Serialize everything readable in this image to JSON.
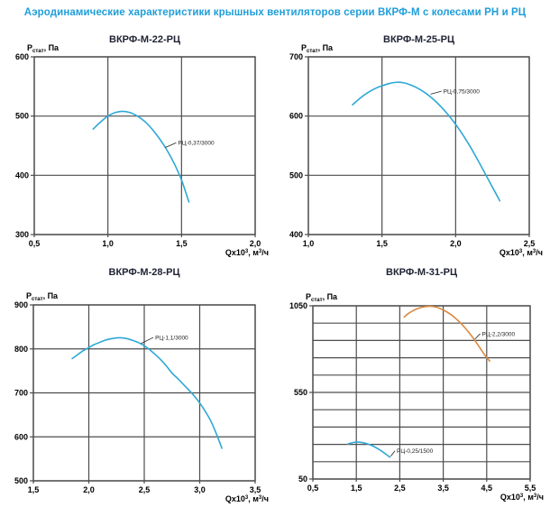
{
  "page": {
    "header": "Аэродинамические характеристики крышных вентиляторов серии ВКРФ-М с колесами РН и РЦ",
    "colors": {
      "header": "#1f9ed9",
      "chart_title": "#1f2233",
      "grid": "#4d4d4d",
      "axis_text": "#000000",
      "curve_label_text": "#222222",
      "cyan": "#2ea8d5",
      "orange": "#d98a42",
      "background": "#ffffff"
    }
  },
  "chart_data": [
    {
      "type": "line",
      "title": "ВКРФ-М-22-РЦ",
      "ylabel": {
        "base": "Р",
        "sub": "стат",
        "rest": ", Па"
      },
      "xlabel": {
        "base": "Qx10",
        "sup": "3",
        "mid": ", м",
        "sup2": "3",
        "rest": "/ч"
      },
      "xlim": [
        0.5,
        2.0
      ],
      "ylim": [
        300,
        600
      ],
      "xticks": [
        {
          "v": 0.5,
          "label": "0,5"
        },
        {
          "v": 1.0,
          "label": "1,0"
        },
        {
          "v": 1.5,
          "label": "1,5"
        },
        {
          "v": 2.0,
          "label": "2,0"
        }
      ],
      "yticks": [
        {
          "v": 300,
          "label": "300"
        },
        {
          "v": 400,
          "label": "400"
        },
        {
          "v": 500,
          "label": "500"
        },
        {
          "v": 600,
          "label": "600"
        }
      ],
      "xgrid": [
        0.5,
        1.0,
        1.5,
        2.0
      ],
      "ygrid": [
        300,
        400,
        500,
        600
      ],
      "series": [
        {
          "name": "РЦ-0,37/3000",
          "color_key": "cyan",
          "points": [
            [
              0.9,
              478
            ],
            [
              0.95,
              490
            ],
            [
              1.0,
              500
            ],
            [
              1.05,
              506
            ],
            [
              1.1,
              508
            ],
            [
              1.15,
              506
            ],
            [
              1.2,
              500
            ],
            [
              1.25,
              491
            ],
            [
              1.3,
              478
            ],
            [
              1.35,
              462
            ],
            [
              1.4,
              443
            ],
            [
              1.45,
              420
            ],
            [
              1.5,
              392
            ],
            [
              1.55,
              355
            ]
          ],
          "label": {
            "text": "РЦ-0,37/3000",
            "x": 1.47,
            "y": 455,
            "px": 1.39,
            "py": 447
          }
        }
      ]
    },
    {
      "type": "line",
      "title": "ВКРФ-М-25-РЦ",
      "ylabel": {
        "base": "Р",
        "sub": "стат",
        "rest": ", Па"
      },
      "xlabel": {
        "base": "Qx10",
        "sup": "3",
        "mid": ", м",
        "sup2": "3",
        "rest": "/ч"
      },
      "xlim": [
        1.0,
        2.5
      ],
      "ylim": [
        400,
        700
      ],
      "xticks": [
        {
          "v": 1.0,
          "label": "1,0"
        },
        {
          "v": 1.5,
          "label": "1,5"
        },
        {
          "v": 2.0,
          "label": "2,0"
        },
        {
          "v": 2.5,
          "label": "2,5"
        }
      ],
      "yticks": [
        {
          "v": 400,
          "label": "400"
        },
        {
          "v": 500,
          "label": "500"
        },
        {
          "v": 600,
          "label": "600"
        },
        {
          "v": 700,
          "label": "700"
        }
      ],
      "xgrid": [
        1.0,
        1.5,
        2.0,
        2.5
      ],
      "ygrid": [
        400,
        500,
        600,
        700
      ],
      "series": [
        {
          "name": "РЦ-0,75/3000",
          "color_key": "cyan",
          "points": [
            [
              1.3,
              619
            ],
            [
              1.35,
              630
            ],
            [
              1.4,
              639
            ],
            [
              1.45,
              646
            ],
            [
              1.5,
              651
            ],
            [
              1.55,
              655
            ],
            [
              1.6,
              657
            ],
            [
              1.65,
              656
            ],
            [
              1.7,
              652
            ],
            [
              1.75,
              646
            ],
            [
              1.8,
              638
            ],
            [
              1.85,
              628
            ],
            [
              1.9,
              616
            ],
            [
              1.95,
              602
            ],
            [
              2.0,
              586
            ],
            [
              2.05,
              568
            ],
            [
              2.1,
              548
            ],
            [
              2.15,
              526
            ],
            [
              2.2,
              503
            ],
            [
              2.25,
              480
            ],
            [
              2.3,
              457
            ]
          ],
          "label": {
            "text": "РЦ-0,75/3000",
            "x": 1.91,
            "y": 642,
            "px": 1.83,
            "py": 637
          }
        }
      ]
    },
    {
      "type": "line",
      "title": "ВКРФ-М-28-РЦ",
      "ylabel": {
        "base": "Р",
        "sub": "стат",
        "rest": ", Па"
      },
      "xlabel": {
        "base": "Qx10",
        "sup": "3",
        "mid": ", м",
        "sup2": "3",
        "rest": "/ч"
      },
      "xlim": [
        1.5,
        3.5
      ],
      "ylim": [
        500,
        900
      ],
      "xticks": [
        {
          "v": 1.5,
          "label": "1,5"
        },
        {
          "v": 2.0,
          "label": "2,0"
        },
        {
          "v": 2.5,
          "label": "2,5"
        },
        {
          "v": 3.0,
          "label": "3,0"
        },
        {
          "v": 3.5,
          "label": "3,5"
        }
      ],
      "yticks": [
        {
          "v": 500,
          "label": "500"
        },
        {
          "v": 600,
          "label": "600"
        },
        {
          "v": 700,
          "label": "700"
        },
        {
          "v": 800,
          "label": "800"
        },
        {
          "v": 900,
          "label": "900"
        }
      ],
      "xgrid": [
        1.5,
        2.0,
        2.5,
        3.0,
        3.5
      ],
      "ygrid": [
        500,
        600,
        700,
        800,
        900
      ],
      "series": [
        {
          "name": "РЦ-1,1/3000",
          "color_key": "cyan",
          "points": [
            [
              1.85,
              778
            ],
            [
              1.9,
              787
            ],
            [
              1.95,
              796
            ],
            [
              2.0,
              803
            ],
            [
              2.05,
              810
            ],
            [
              2.1,
              815
            ],
            [
              2.15,
              820
            ],
            [
              2.2,
              823
            ],
            [
              2.25,
              825
            ],
            [
              2.3,
              825
            ],
            [
              2.35,
              823
            ],
            [
              2.4,
              819
            ],
            [
              2.45,
              814
            ],
            [
              2.5,
              807
            ],
            [
              2.55,
              798
            ],
            [
              2.6,
              787
            ],
            [
              2.65,
              775
            ],
            [
              2.7,
              761
            ],
            [
              2.75,
              745
            ],
            [
              2.8,
              733
            ],
            [
              2.85,
              720
            ],
            [
              2.9,
              707
            ],
            [
              2.95,
              693
            ],
            [
              3.0,
              677
            ],
            [
              3.05,
              658
            ],
            [
              3.1,
              636
            ],
            [
              3.15,
              607
            ],
            [
              3.2,
              574
            ]
          ],
          "label": {
            "text": "РЦ-1,1/3000",
            "x": 2.59,
            "y": 826,
            "px": 2.47,
            "py": 812
          }
        }
      ]
    },
    {
      "type": "line",
      "title": "ВКРФ-М-31-РЦ",
      "ylabel": {
        "base": "Р",
        "sub": "стат",
        "rest": ", Па"
      },
      "xlabel": {
        "base": "Qx10",
        "sup": "3",
        "mid": ", м",
        "sup2": "3",
        "rest": "/ч"
      },
      "xlim": [
        0.5,
        5.5
      ],
      "ylim": [
        50,
        1050
      ],
      "xticks": [
        {
          "v": 0.5,
          "label": "0,5"
        },
        {
          "v": 1.5,
          "label": "1,5"
        },
        {
          "v": 2.5,
          "label": "2,5"
        },
        {
          "v": 3.5,
          "label": "3,5"
        },
        {
          "v": 4.5,
          "label": "4,5"
        },
        {
          "v": 5.5,
          "label": "5,5"
        }
      ],
      "yticks": [
        {
          "v": 1050,
          "label": "1050"
        },
        {
          "v": 550,
          "label": "550"
        },
        {
          "v": 50,
          "label": "50"
        }
      ],
      "xgrid": [
        0.5,
        1.5,
        2.5,
        3.5,
        4.5,
        5.5
      ],
      "ygrid": [
        50,
        150,
        250,
        350,
        450,
        550,
        650,
        750,
        850,
        950,
        1050
      ],
      "series": [
        {
          "name": "РЦ-2,2/3000",
          "color_key": "orange",
          "points": [
            [
              2.6,
              985
            ],
            [
              2.7,
              1006
            ],
            [
              2.8,
              1021
            ],
            [
              2.9,
              1033
            ],
            [
              3.0,
              1041
            ],
            [
              3.1,
              1046
            ],
            [
              3.2,
              1047
            ],
            [
              3.3,
              1044
            ],
            [
              3.4,
              1037
            ],
            [
              3.5,
              1026
            ],
            [
              3.6,
              1012
            ],
            [
              3.7,
              995
            ],
            [
              3.8,
              974
            ],
            [
              3.9,
              950
            ],
            [
              4.0,
              923
            ],
            [
              4.1,
              893
            ],
            [
              4.2,
              860
            ],
            [
              4.3,
              824
            ],
            [
              4.4,
              786
            ],
            [
              4.5,
              750
            ],
            [
              4.57,
              731
            ]
          ],
          "label": {
            "text": "РЦ-2,2/3000",
            "x": 4.37,
            "y": 889,
            "px": 4.23,
            "py": 858
          }
        },
        {
          "name": "РЦ-0,25/1500",
          "color_key": "cyan",
          "points": [
            [
              1.3,
              252
            ],
            [
              1.4,
              259
            ],
            [
              1.5,
              263
            ],
            [
              1.6,
              262
            ],
            [
              1.7,
              257
            ],
            [
              1.8,
              249
            ],
            [
              1.9,
              238
            ],
            [
              2.0,
              224
            ],
            [
              2.1,
              208
            ],
            [
              2.2,
              190
            ],
            [
              2.27,
              176
            ]
          ],
          "label": {
            "text": "РЦ-0,25/1500",
            "x": 2.41,
            "y": 213,
            "px": 2.29,
            "py": 181
          }
        }
      ]
    }
  ]
}
